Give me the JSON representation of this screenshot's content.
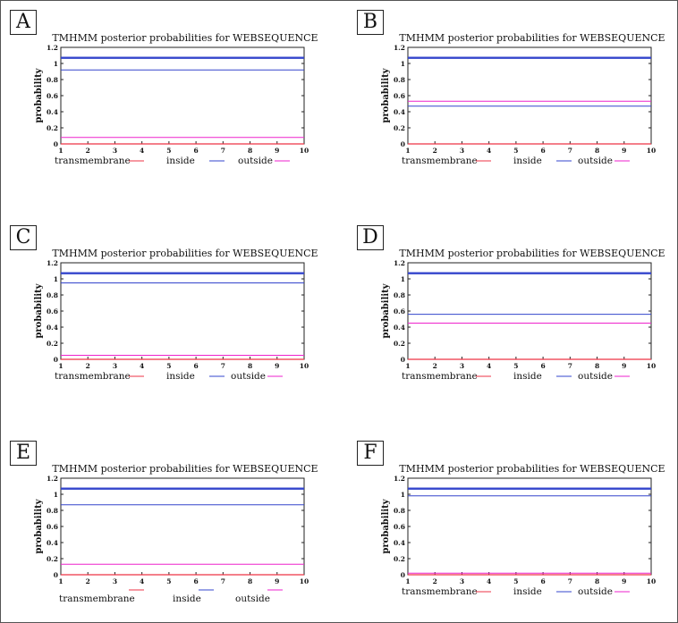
{
  "colors": {
    "transmembrane": "#ee3344",
    "inside": "#3344cc",
    "outside": "#ee22cc",
    "axis": "#222222"
  },
  "chart_data": [
    {
      "panel": "A",
      "type": "line",
      "title": "TMHMM posterior probabilities for WEBSEQUENCE",
      "ylabel": "probability",
      "x": [
        1,
        10
      ],
      "xticks": [
        "1",
        "2",
        "3",
        "4",
        "5",
        "6",
        "7",
        "8",
        "9",
        "10"
      ],
      "yticks": [
        "0",
        "0.2",
        "0.4",
        "0.6",
        "0.8",
        "1",
        "1.2"
      ],
      "xlim": [
        1,
        10
      ],
      "ylim": [
        0,
        1.2
      ],
      "reference_line": 1.07,
      "series": [
        {
          "name": "transmembrane",
          "values": [
            0,
            0
          ]
        },
        {
          "name": "inside",
          "values": [
            0.92,
            0.92
          ]
        },
        {
          "name": "outside",
          "values": [
            0.08,
            0.08
          ]
        }
      ],
      "legend": [
        "transmembrane",
        "inside",
        "outside"
      ]
    },
    {
      "panel": "B",
      "type": "line",
      "title": "TMHMM posterior probabilities for WEBSEQUENCE",
      "ylabel": "probability",
      "x": [
        1,
        10
      ],
      "xticks": [
        "1",
        "2",
        "3",
        "4",
        "5",
        "6",
        "7",
        "8",
        "9",
        "10"
      ],
      "yticks": [
        "0",
        "0.2",
        "0.4",
        "0.6",
        "0.8",
        "1",
        "1.2"
      ],
      "xlim": [
        1,
        10
      ],
      "ylim": [
        0,
        1.2
      ],
      "reference_line": 1.07,
      "series": [
        {
          "name": "transmembrane",
          "values": [
            0,
            0
          ]
        },
        {
          "name": "inside",
          "values": [
            0.47,
            0.47
          ]
        },
        {
          "name": "outside",
          "values": [
            0.53,
            0.53
          ]
        }
      ],
      "legend": [
        "transmembrane",
        "inside",
        "outside"
      ]
    },
    {
      "panel": "C",
      "type": "line",
      "title": "TMHMM posterior probabilities for WEBSEQUENCE",
      "ylabel": "probability",
      "x": [
        1,
        10
      ],
      "xticks": [
        "1",
        "2",
        "3",
        "4",
        "5",
        "6",
        "7",
        "8",
        "9",
        "10"
      ],
      "yticks": [
        "0",
        "0.2",
        "0.4",
        "0.6",
        "0.8",
        "1",
        "1.2"
      ],
      "xlim": [
        1,
        10
      ],
      "ylim": [
        0,
        1.2
      ],
      "reference_line": 1.07,
      "series": [
        {
          "name": "transmembrane",
          "values": [
            0,
            0
          ]
        },
        {
          "name": "inside",
          "values": [
            0.95,
            0.95
          ]
        },
        {
          "name": "outside",
          "values": [
            0.05,
            0.05
          ]
        }
      ],
      "legend": [
        "transmembrane",
        "inside",
        "outside"
      ]
    },
    {
      "panel": "D",
      "type": "line",
      "title": "TMHMM posterior probabilities for WEBSEQUENCE",
      "ylabel": "probability",
      "x": [
        1,
        10
      ],
      "xticks": [
        "1",
        "2",
        "3",
        "4",
        "5",
        "6",
        "7",
        "8",
        "9",
        "10"
      ],
      "yticks": [
        "0",
        "0.2",
        "0.4",
        "0.6",
        "0.8",
        "1",
        "1.2"
      ],
      "xlim": [
        1,
        10
      ],
      "ylim": [
        0,
        1.2
      ],
      "reference_line": 1.07,
      "series": [
        {
          "name": "transmembrane",
          "values": [
            0,
            0
          ]
        },
        {
          "name": "inside",
          "values": [
            0.56,
            0.56
          ]
        },
        {
          "name": "outside",
          "values": [
            0.45,
            0.45
          ]
        }
      ],
      "legend": [
        "transmembrane",
        "inside",
        "outside"
      ]
    },
    {
      "panel": "E",
      "type": "line",
      "title": "TMHMM posterior probabilities for WEBSEQUENCE",
      "ylabel": "probability",
      "x": [
        1,
        10
      ],
      "xticks": [
        "1",
        "2",
        "3",
        "4",
        "5",
        "6",
        "7",
        "8",
        "9",
        "10"
      ],
      "yticks": [
        "0",
        "0.2",
        "0.4",
        "0.6",
        "0.8",
        "1",
        "1.2"
      ],
      "xlim": [
        1,
        10
      ],
      "ylim": [
        0,
        1.2
      ],
      "reference_line": 1.07,
      "series": [
        {
          "name": "transmembrane",
          "values": [
            0,
            0
          ]
        },
        {
          "name": "inside",
          "values": [
            0.87,
            0.87
          ]
        },
        {
          "name": "outside",
          "values": [
            0.13,
            0.13
          ]
        }
      ],
      "legend": [
        "transmembrane",
        "inside",
        "outside"
      ]
    },
    {
      "panel": "F",
      "type": "line",
      "title": "TMHMM posterior probabilities for WEBSEQUENCE",
      "ylabel": "probability",
      "x": [
        1,
        10
      ],
      "xticks": [
        "1",
        "2",
        "3",
        "4",
        "5",
        "6",
        "7",
        "8",
        "9",
        "10"
      ],
      "yticks": [
        "0",
        "0.2",
        "0.4",
        "0.6",
        "0.8",
        "1",
        "1.2"
      ],
      "xlim": [
        1,
        10
      ],
      "ylim": [
        0,
        1.2
      ],
      "reference_line": 1.07,
      "series": [
        {
          "name": "transmembrane",
          "values": [
            0,
            0
          ]
        },
        {
          "name": "inside",
          "values": [
            0.98,
            0.98
          ]
        },
        {
          "name": "outside",
          "values": [
            0.02,
            0.02
          ]
        }
      ],
      "legend": [
        "transmembrane",
        "inside",
        "outside"
      ]
    }
  ]
}
